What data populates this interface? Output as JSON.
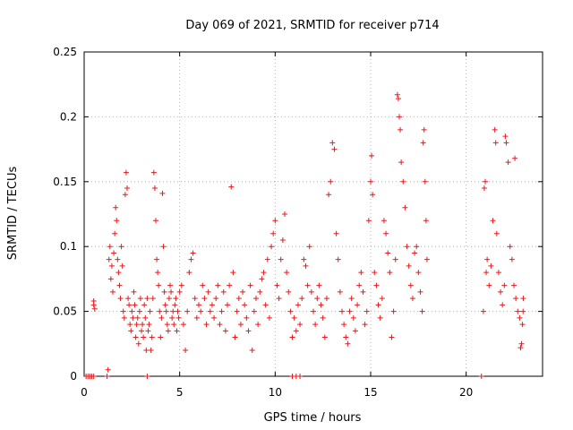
{
  "chart_data": {
    "type": "scatter",
    "title": "Day 069 of 2021, SRMTID for receiver p714",
    "xlabel": "GPS time / hours",
    "ylabel": "SRMTID / TECUs",
    "xlim": [
      0,
      24
    ],
    "ylim": [
      0,
      0.25
    ],
    "xticks": [
      0,
      5,
      10,
      15,
      20
    ],
    "yticks": [
      0,
      0.05,
      0.1,
      0.15,
      0.2,
      0.25
    ],
    "xtick_labels": [
      "0",
      "5",
      "10",
      "15",
      "20"
    ],
    "ytick_labels": [
      "0",
      "0.05",
      "0.1",
      "0.15",
      "0.2",
      "0.25"
    ],
    "grid": true,
    "marker": "+",
    "color": "#e41a1c",
    "series": [
      {
        "name": "SRMTID",
        "points": [
          [
            0.1,
            0.0
          ],
          [
            0.2,
            0.0
          ],
          [
            0.3,
            0.0
          ],
          [
            0.4,
            0.0
          ],
          [
            0.5,
            0.0
          ],
          [
            1.2,
            0.0
          ],
          [
            3.3,
            0.0
          ],
          [
            10.9,
            0.0
          ],
          [
            11.1,
            0.0
          ],
          [
            11.3,
            0.0
          ],
          [
            20.8,
            0.0
          ],
          [
            0.5,
            0.055
          ],
          [
            0.5,
            0.058
          ],
          [
            0.55,
            0.052
          ],
          [
            1.25,
            0.005
          ],
          [
            1.3,
            0.09
          ],
          [
            1.35,
            0.1
          ],
          [
            1.4,
            0.075
          ],
          [
            1.45,
            0.085
          ],
          [
            1.5,
            0.065
          ],
          [
            1.55,
            0.095
          ],
          [
            1.6,
            0.11
          ],
          [
            1.65,
            0.13
          ],
          [
            1.7,
            0.12
          ],
          [
            1.75,
            0.09
          ],
          [
            1.8,
            0.08
          ],
          [
            1.85,
            0.07
          ],
          [
            1.9,
            0.06
          ],
          [
            1.95,
            0.1
          ],
          [
            2.0,
            0.085
          ],
          [
            2.05,
            0.05
          ],
          [
            2.1,
            0.045
          ],
          [
            2.15,
            0.14
          ],
          [
            2.2,
            0.157
          ],
          [
            2.25,
            0.145
          ],
          [
            2.3,
            0.06
          ],
          [
            2.35,
            0.055
          ],
          [
            2.4,
            0.04
          ],
          [
            2.45,
            0.035
          ],
          [
            2.5,
            0.05
          ],
          [
            2.55,
            0.045
          ],
          [
            2.6,
            0.065
          ],
          [
            2.65,
            0.055
          ],
          [
            2.7,
            0.03
          ],
          [
            2.75,
            0.04
          ],
          [
            2.8,
            0.045
          ],
          [
            2.85,
            0.025
          ],
          [
            2.9,
            0.05
          ],
          [
            2.95,
            0.06
          ],
          [
            3.0,
            0.035
          ],
          [
            3.05,
            0.04
          ],
          [
            3.1,
            0.03
          ],
          [
            3.15,
            0.055
          ],
          [
            3.2,
            0.045
          ],
          [
            3.25,
            0.02
          ],
          [
            3.3,
            0.06
          ],
          [
            3.35,
            0.035
          ],
          [
            3.4,
            0.04
          ],
          [
            3.45,
            0.05
          ],
          [
            3.5,
            0.02
          ],
          [
            3.55,
            0.03
          ],
          [
            3.6,
            0.06
          ],
          [
            3.65,
            0.157
          ],
          [
            3.7,
            0.145
          ],
          [
            3.75,
            0.12
          ],
          [
            3.8,
            0.09
          ],
          [
            3.85,
            0.08
          ],
          [
            3.9,
            0.07
          ],
          [
            3.95,
            0.05
          ],
          [
            4.0,
            0.03
          ],
          [
            4.05,
            0.045
          ],
          [
            4.1,
            0.141
          ],
          [
            4.15,
            0.1
          ],
          [
            4.2,
            0.065
          ],
          [
            4.25,
            0.055
          ],
          [
            4.3,
            0.05
          ],
          [
            4.35,
            0.04
          ],
          [
            4.4,
            0.035
          ],
          [
            4.45,
            0.06
          ],
          [
            4.5,
            0.07
          ],
          [
            4.55,
            0.065
          ],
          [
            4.6,
            0.045
          ],
          [
            4.65,
            0.05
          ],
          [
            4.7,
            0.04
          ],
          [
            4.75,
            0.055
          ],
          [
            4.8,
            0.06
          ],
          [
            4.85,
            0.035
          ],
          [
            4.9,
            0.05
          ],
          [
            4.95,
            0.045
          ],
          [
            5.0,
            0.065
          ],
          [
            5.1,
            0.07
          ],
          [
            5.2,
            0.04
          ],
          [
            5.3,
            0.02
          ],
          [
            5.4,
            0.05
          ],
          [
            5.5,
            0.08
          ],
          [
            5.6,
            0.09
          ],
          [
            5.7,
            0.095
          ],
          [
            5.8,
            0.06
          ],
          [
            5.9,
            0.045
          ],
          [
            6.0,
            0.055
          ],
          [
            6.1,
            0.05
          ],
          [
            6.2,
            0.07
          ],
          [
            6.3,
            0.06
          ],
          [
            6.4,
            0.04
          ],
          [
            6.5,
            0.065
          ],
          [
            6.6,
            0.05
          ],
          [
            6.7,
            0.055
          ],
          [
            6.8,
            0.045
          ],
          [
            6.9,
            0.06
          ],
          [
            7.0,
            0.07
          ],
          [
            7.1,
            0.04
          ],
          [
            7.2,
            0.05
          ],
          [
            7.3,
            0.065
          ],
          [
            7.4,
            0.035
          ],
          [
            7.5,
            0.055
          ],
          [
            7.6,
            0.07
          ],
          [
            7.7,
            0.146
          ],
          [
            7.8,
            0.08
          ],
          [
            7.9,
            0.03
          ],
          [
            8.0,
            0.05
          ],
          [
            8.1,
            0.06
          ],
          [
            8.2,
            0.04
          ],
          [
            8.3,
            0.065
          ],
          [
            8.4,
            0.055
          ],
          [
            8.5,
            0.045
          ],
          [
            8.6,
            0.035
          ],
          [
            8.7,
            0.07
          ],
          [
            8.8,
            0.02
          ],
          [
            8.9,
            0.05
          ],
          [
            9.0,
            0.06
          ],
          [
            9.1,
            0.04
          ],
          [
            9.2,
            0.065
          ],
          [
            9.3,
            0.075
          ],
          [
            9.4,
            0.08
          ],
          [
            9.5,
            0.055
          ],
          [
            9.6,
            0.09
          ],
          [
            9.7,
            0.045
          ],
          [
            9.8,
            0.1
          ],
          [
            9.9,
            0.11
          ],
          [
            10.0,
            0.12
          ],
          [
            10.1,
            0.07
          ],
          [
            10.2,
            0.06
          ],
          [
            10.3,
            0.09
          ],
          [
            10.4,
            0.105
          ],
          [
            10.5,
            0.125
          ],
          [
            10.6,
            0.08
          ],
          [
            10.7,
            0.065
          ],
          [
            10.8,
            0.05
          ],
          [
            10.9,
            0.03
          ],
          [
            11.0,
            0.045
          ],
          [
            11.1,
            0.035
          ],
          [
            11.2,
            0.055
          ],
          [
            11.3,
            0.04
          ],
          [
            11.4,
            0.06
          ],
          [
            11.5,
            0.09
          ],
          [
            11.6,
            0.085
          ],
          [
            11.7,
            0.07
          ],
          [
            11.8,
            0.1
          ],
          [
            11.9,
            0.065
          ],
          [
            12.0,
            0.05
          ],
          [
            12.1,
            0.04
          ],
          [
            12.2,
            0.06
          ],
          [
            12.3,
            0.07
          ],
          [
            12.4,
            0.055
          ],
          [
            12.5,
            0.045
          ],
          [
            12.6,
            0.03
          ],
          [
            12.7,
            0.06
          ],
          [
            12.8,
            0.14
          ],
          [
            12.9,
            0.15
          ],
          [
            13.0,
            0.18
          ],
          [
            13.1,
            0.175
          ],
          [
            13.2,
            0.11
          ],
          [
            13.3,
            0.09
          ],
          [
            13.4,
            0.065
          ],
          [
            13.5,
            0.05
          ],
          [
            13.6,
            0.04
          ],
          [
            13.7,
            0.03
          ],
          [
            13.8,
            0.025
          ],
          [
            13.9,
            0.05
          ],
          [
            14.0,
            0.06
          ],
          [
            14.1,
            0.045
          ],
          [
            14.2,
            0.035
          ],
          [
            14.3,
            0.055
          ],
          [
            14.4,
            0.07
          ],
          [
            14.5,
            0.08
          ],
          [
            14.6,
            0.065
          ],
          [
            14.7,
            0.04
          ],
          [
            14.8,
            0.05
          ],
          [
            14.9,
            0.12
          ],
          [
            15.0,
            0.15
          ],
          [
            15.05,
            0.17
          ],
          [
            15.1,
            0.14
          ],
          [
            15.2,
            0.08
          ],
          [
            15.3,
            0.07
          ],
          [
            15.4,
            0.055
          ],
          [
            15.5,
            0.045
          ],
          [
            15.6,
            0.06
          ],
          [
            15.7,
            0.12
          ],
          [
            15.8,
            0.11
          ],
          [
            15.9,
            0.095
          ],
          [
            16.0,
            0.08
          ],
          [
            16.1,
            0.03
          ],
          [
            16.2,
            0.05
          ],
          [
            16.3,
            0.09
          ],
          [
            16.4,
            0.217
          ],
          [
            16.45,
            0.214
          ],
          [
            16.5,
            0.2
          ],
          [
            16.55,
            0.19
          ],
          [
            16.6,
            0.165
          ],
          [
            16.7,
            0.15
          ],
          [
            16.8,
            0.13
          ],
          [
            16.9,
            0.1
          ],
          [
            17.0,
            0.085
          ],
          [
            17.1,
            0.07
          ],
          [
            17.2,
            0.06
          ],
          [
            17.3,
            0.095
          ],
          [
            17.4,
            0.1
          ],
          [
            17.5,
            0.08
          ],
          [
            17.6,
            0.065
          ],
          [
            17.7,
            0.05
          ],
          [
            17.75,
            0.18
          ],
          [
            17.8,
            0.19
          ],
          [
            17.85,
            0.15
          ],
          [
            17.9,
            0.12
          ],
          [
            17.95,
            0.09
          ],
          [
            20.9,
            0.05
          ],
          [
            20.95,
            0.145
          ],
          [
            21.0,
            0.15
          ],
          [
            21.05,
            0.08
          ],
          [
            21.1,
            0.09
          ],
          [
            21.2,
            0.07
          ],
          [
            21.3,
            0.085
          ],
          [
            21.4,
            0.12
          ],
          [
            21.5,
            0.19
          ],
          [
            21.55,
            0.18
          ],
          [
            21.6,
            0.11
          ],
          [
            21.7,
            0.08
          ],
          [
            21.8,
            0.065
          ],
          [
            21.9,
            0.055
          ],
          [
            22.0,
            0.07
          ],
          [
            22.05,
            0.185
          ],
          [
            22.1,
            0.18
          ],
          [
            22.2,
            0.165
          ],
          [
            22.3,
            0.1
          ],
          [
            22.4,
            0.09
          ],
          [
            22.5,
            0.07
          ],
          [
            22.55,
            0.168
          ],
          [
            22.6,
            0.06
          ],
          [
            22.7,
            0.05
          ],
          [
            22.8,
            0.045
          ],
          [
            22.85,
            0.022
          ],
          [
            22.9,
            0.025
          ],
          [
            22.95,
            0.04
          ],
          [
            22.98,
            0.05
          ],
          [
            22.99,
            0.06
          ]
        ]
      }
    ]
  }
}
